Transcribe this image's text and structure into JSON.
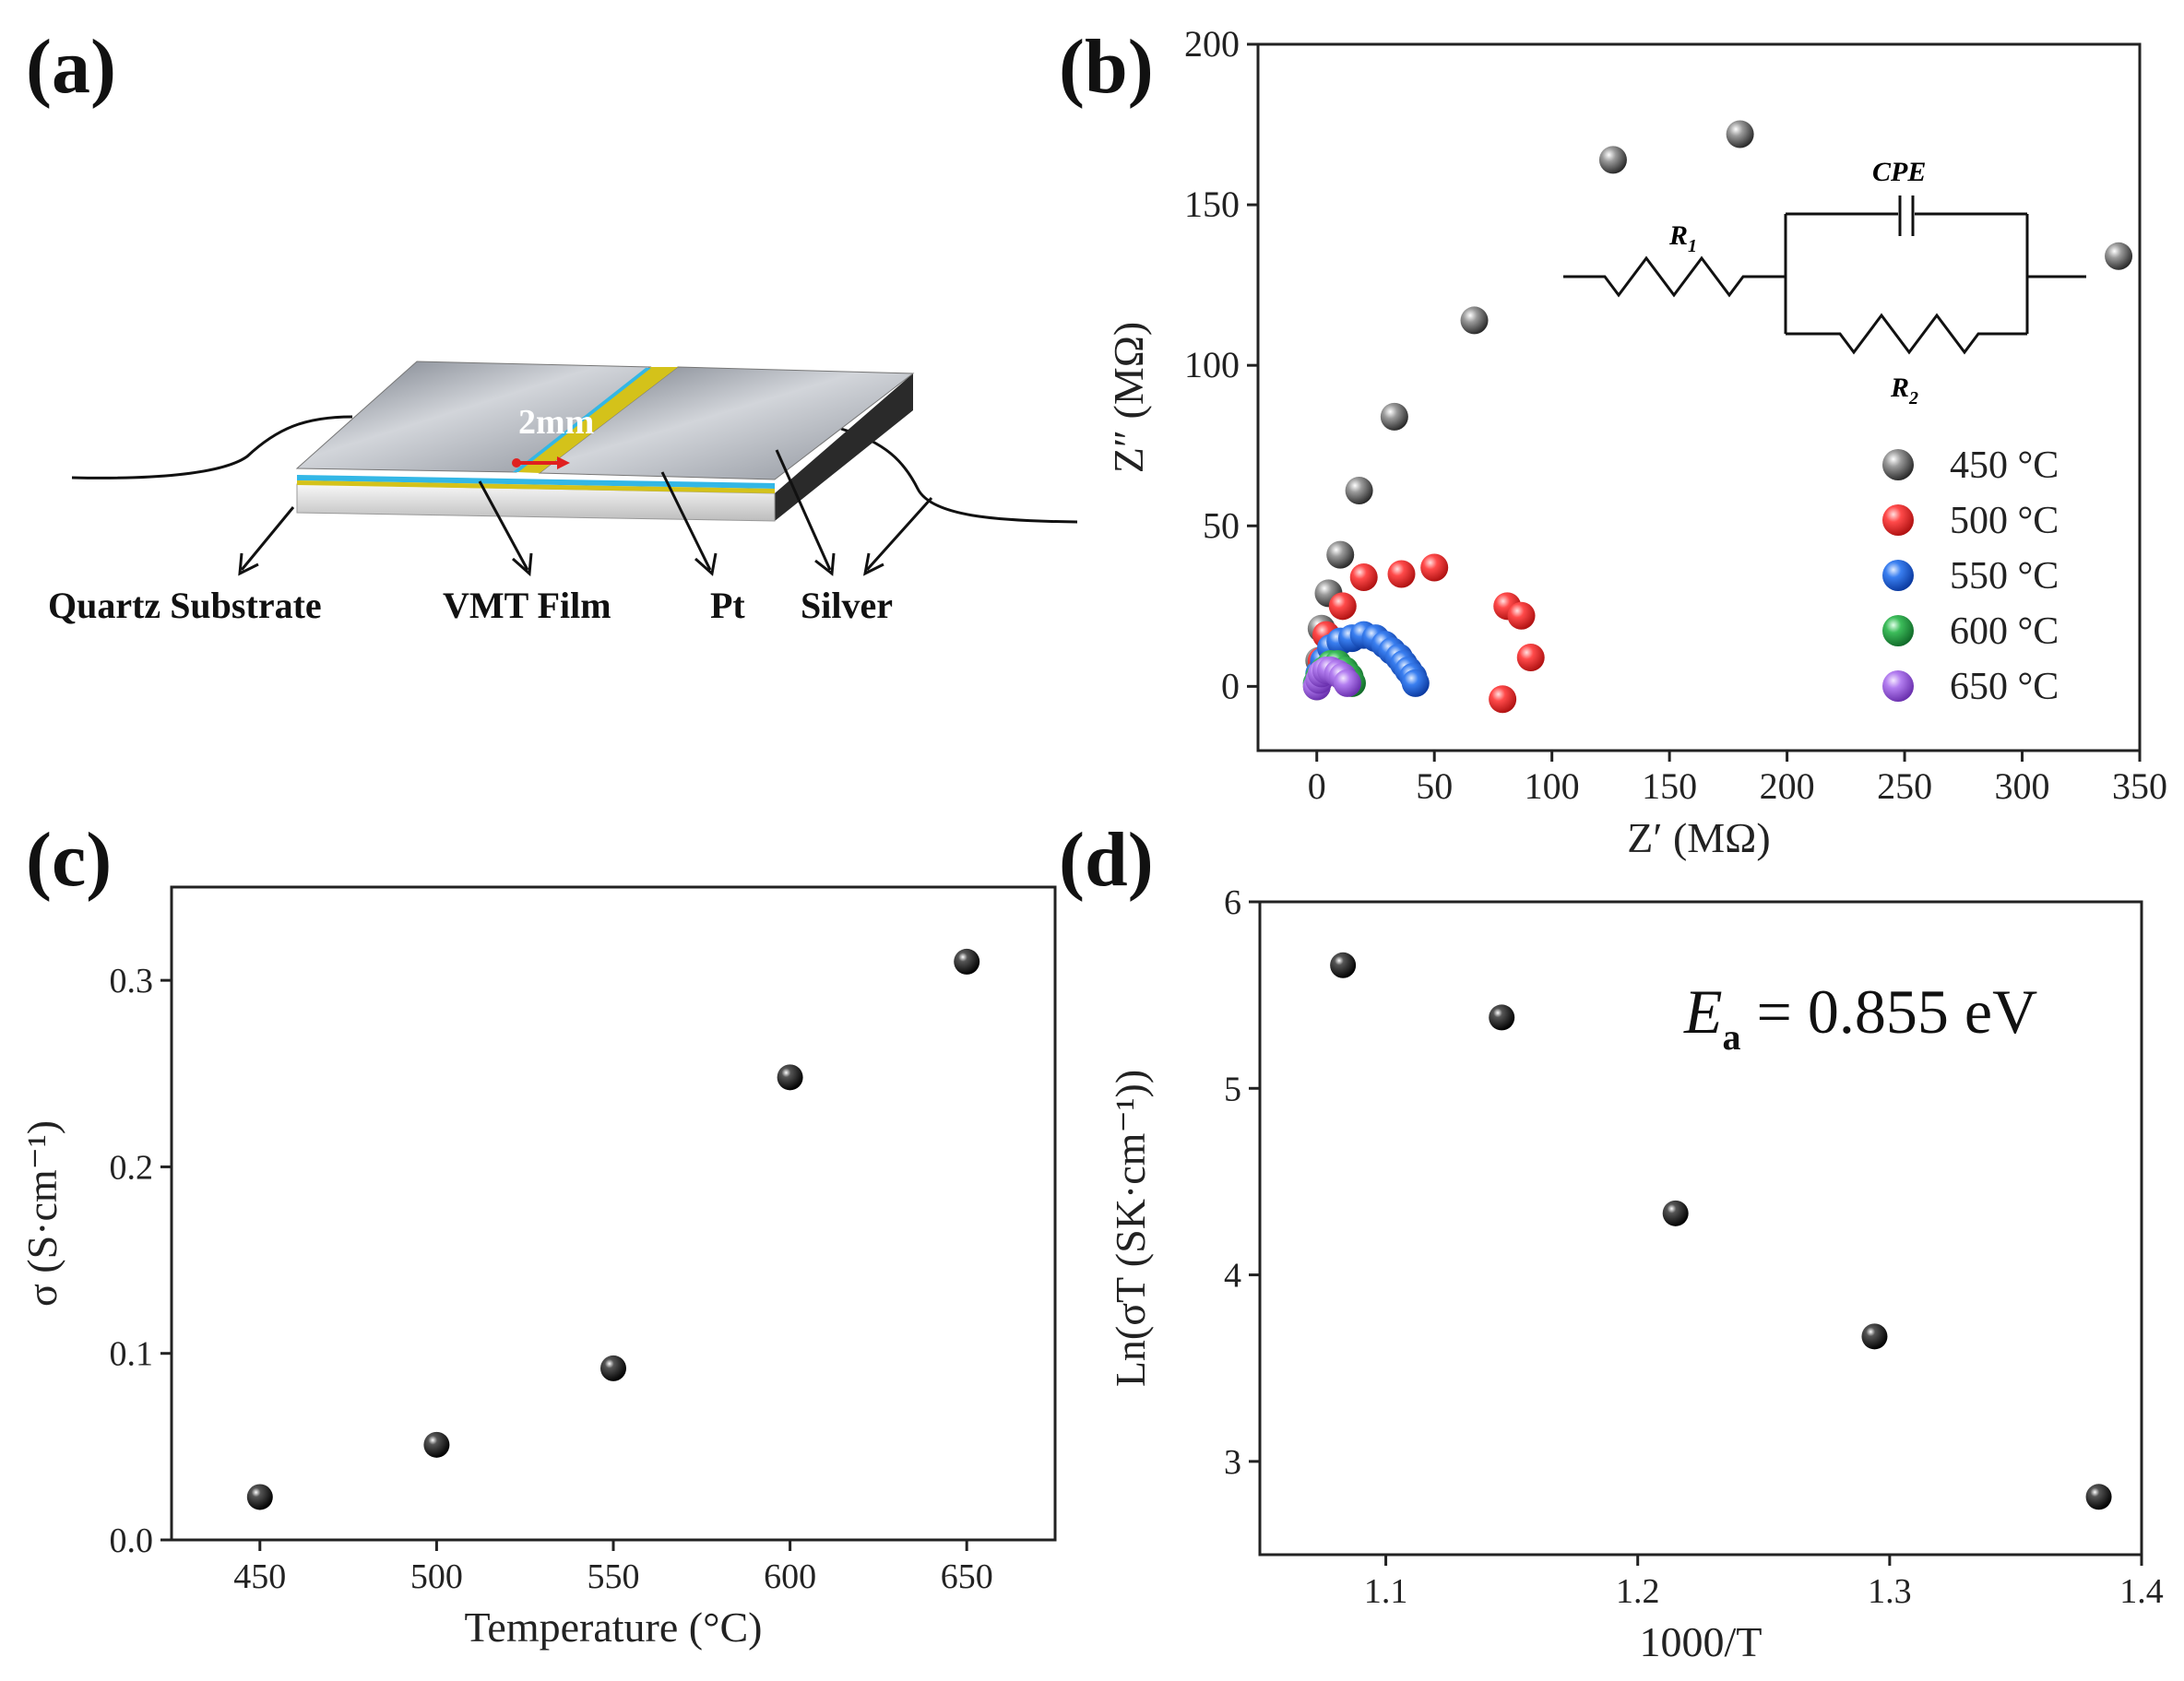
{
  "panels": {
    "a": {
      "label": "(a)"
    },
    "b": {
      "label": "(b)"
    },
    "c": {
      "label": "(c)"
    },
    "d": {
      "label": "(d)"
    }
  },
  "diagram": {
    "gap_label": "2mm",
    "labels": [
      "Quartz Substrate",
      "VMT Film",
      "Pt",
      "Silver"
    ],
    "colors": {
      "silver": "#a7acb5",
      "film": "#33b7e6",
      "pt": "#d4c21a",
      "quartz": "#e6e6e6",
      "dark": "#2a2a2a"
    }
  },
  "inset_circuit": {
    "r1": "R",
    "r1_sub": "1",
    "cpe": "CPE",
    "r2": "R",
    "r2_sub": "2"
  },
  "annotation_d": {
    "prefix": "E",
    "sub": "a",
    "text": " = 0.855 eV"
  },
  "chart_data": [
    {
      "id": "b",
      "type": "scatter",
      "title": "",
      "xlabel": "Z′ (MΩ)",
      "ylabel": "Z″ (MΩ)",
      "xlim": [
        -25,
        350
      ],
      "ylim": [
        -20,
        200
      ],
      "xticks": [
        0,
        50,
        100,
        150,
        200,
        250,
        300,
        350
      ],
      "yticks": [
        0,
        50,
        100,
        150,
        200
      ],
      "legend": "right",
      "series": [
        {
          "name": "450 °C",
          "color": "#555555",
          "points": [
            [
              0,
              0
            ],
            [
              1,
              8
            ],
            [
              2,
              18
            ],
            [
              5,
              29
            ],
            [
              10,
              41
            ],
            [
              18,
              61
            ],
            [
              33,
              84
            ],
            [
              67,
              114
            ],
            [
              126,
              164
            ],
            [
              180,
              172
            ],
            [
              341,
              134
            ]
          ]
        },
        {
          "name": "500 °C",
          "color": "#ee3a3a",
          "points": [
            [
              1,
              2
            ],
            [
              2,
              8
            ],
            [
              4,
              16
            ],
            [
              11,
              25
            ],
            [
              20,
              34
            ],
            [
              36,
              35
            ],
            [
              50,
              37
            ],
            [
              81,
              25
            ],
            [
              87,
              22
            ],
            [
              91,
              9
            ],
            [
              79,
              -4
            ]
          ]
        },
        {
          "name": "550 °C",
          "color": "#2f6fdc",
          "points": [
            [
              0,
              1
            ],
            [
              1,
              4
            ],
            [
              3,
              8
            ],
            [
              6,
              12
            ],
            [
              10,
              14
            ],
            [
              15,
              15
            ],
            [
              20,
              16
            ],
            [
              25,
              15
            ],
            [
              29,
              13
            ],
            [
              32,
              11
            ],
            [
              35,
              9
            ],
            [
              37,
              7
            ],
            [
              39,
              5
            ],
            [
              41,
              3
            ],
            [
              42,
              1
            ]
          ]
        },
        {
          "name": "600 °C",
          "color": "#2eaa4a",
          "points": [
            [
              0,
              1
            ],
            [
              1,
              3
            ],
            [
              3,
              5
            ],
            [
              6,
              7
            ],
            [
              9,
              7
            ],
            [
              12,
              5
            ],
            [
              14,
              3
            ],
            [
              15,
              1
            ]
          ]
        },
        {
          "name": "650 °C",
          "color": "#a46be0",
          "points": [
            [
              0,
              0
            ],
            [
              1,
              2
            ],
            [
              2,
              4
            ],
            [
              4,
              5
            ],
            [
              6,
              5
            ],
            [
              9,
              4
            ],
            [
              11,
              3
            ],
            [
              13,
              1
            ]
          ]
        }
      ]
    },
    {
      "id": "c",
      "type": "scatter",
      "title": "",
      "xlabel": "Temperature (°C)",
      "ylabel": "σ (S·cm⁻¹)",
      "xlim": [
        425,
        675
      ],
      "ylim": [
        0,
        0.35
      ],
      "xticks": [
        450,
        500,
        550,
        600,
        650
      ],
      "yticks": [
        0.0,
        0.1,
        0.2,
        0.3
      ],
      "ytick_labels": [
        "0.0",
        "0.1",
        "0.2",
        "0.3"
      ],
      "series": [
        {
          "name": "σ",
          "color": "#111111",
          "points": [
            [
              450,
              0.023
            ],
            [
              500,
              0.051
            ],
            [
              550,
              0.092
            ],
            [
              600,
              0.248
            ],
            [
              650,
              0.31
            ]
          ]
        }
      ]
    },
    {
      "id": "d",
      "type": "scatter",
      "title": "",
      "xlabel": "1000/T",
      "ylabel": "Ln(σT (SK·cm⁻¹))",
      "xlim": [
        1.05,
        1.4
      ],
      "ylim": [
        2.5,
        6
      ],
      "xticks": [
        1.1,
        1.2,
        1.3,
        1.4
      ],
      "xtick_labels": [
        "1.1",
        "1.2",
        "1.3",
        "1.4"
      ],
      "yticks": [
        3,
        4,
        5,
        6
      ],
      "series": [
        {
          "name": "Ln(σT)",
          "color": "#111111",
          "points": [
            [
              1.083,
              5.66
            ],
            [
              1.146,
              5.38
            ],
            [
              1.215,
              4.33
            ],
            [
              1.294,
              3.67
            ],
            [
              1.383,
              2.81
            ]
          ]
        }
      ]
    }
  ]
}
